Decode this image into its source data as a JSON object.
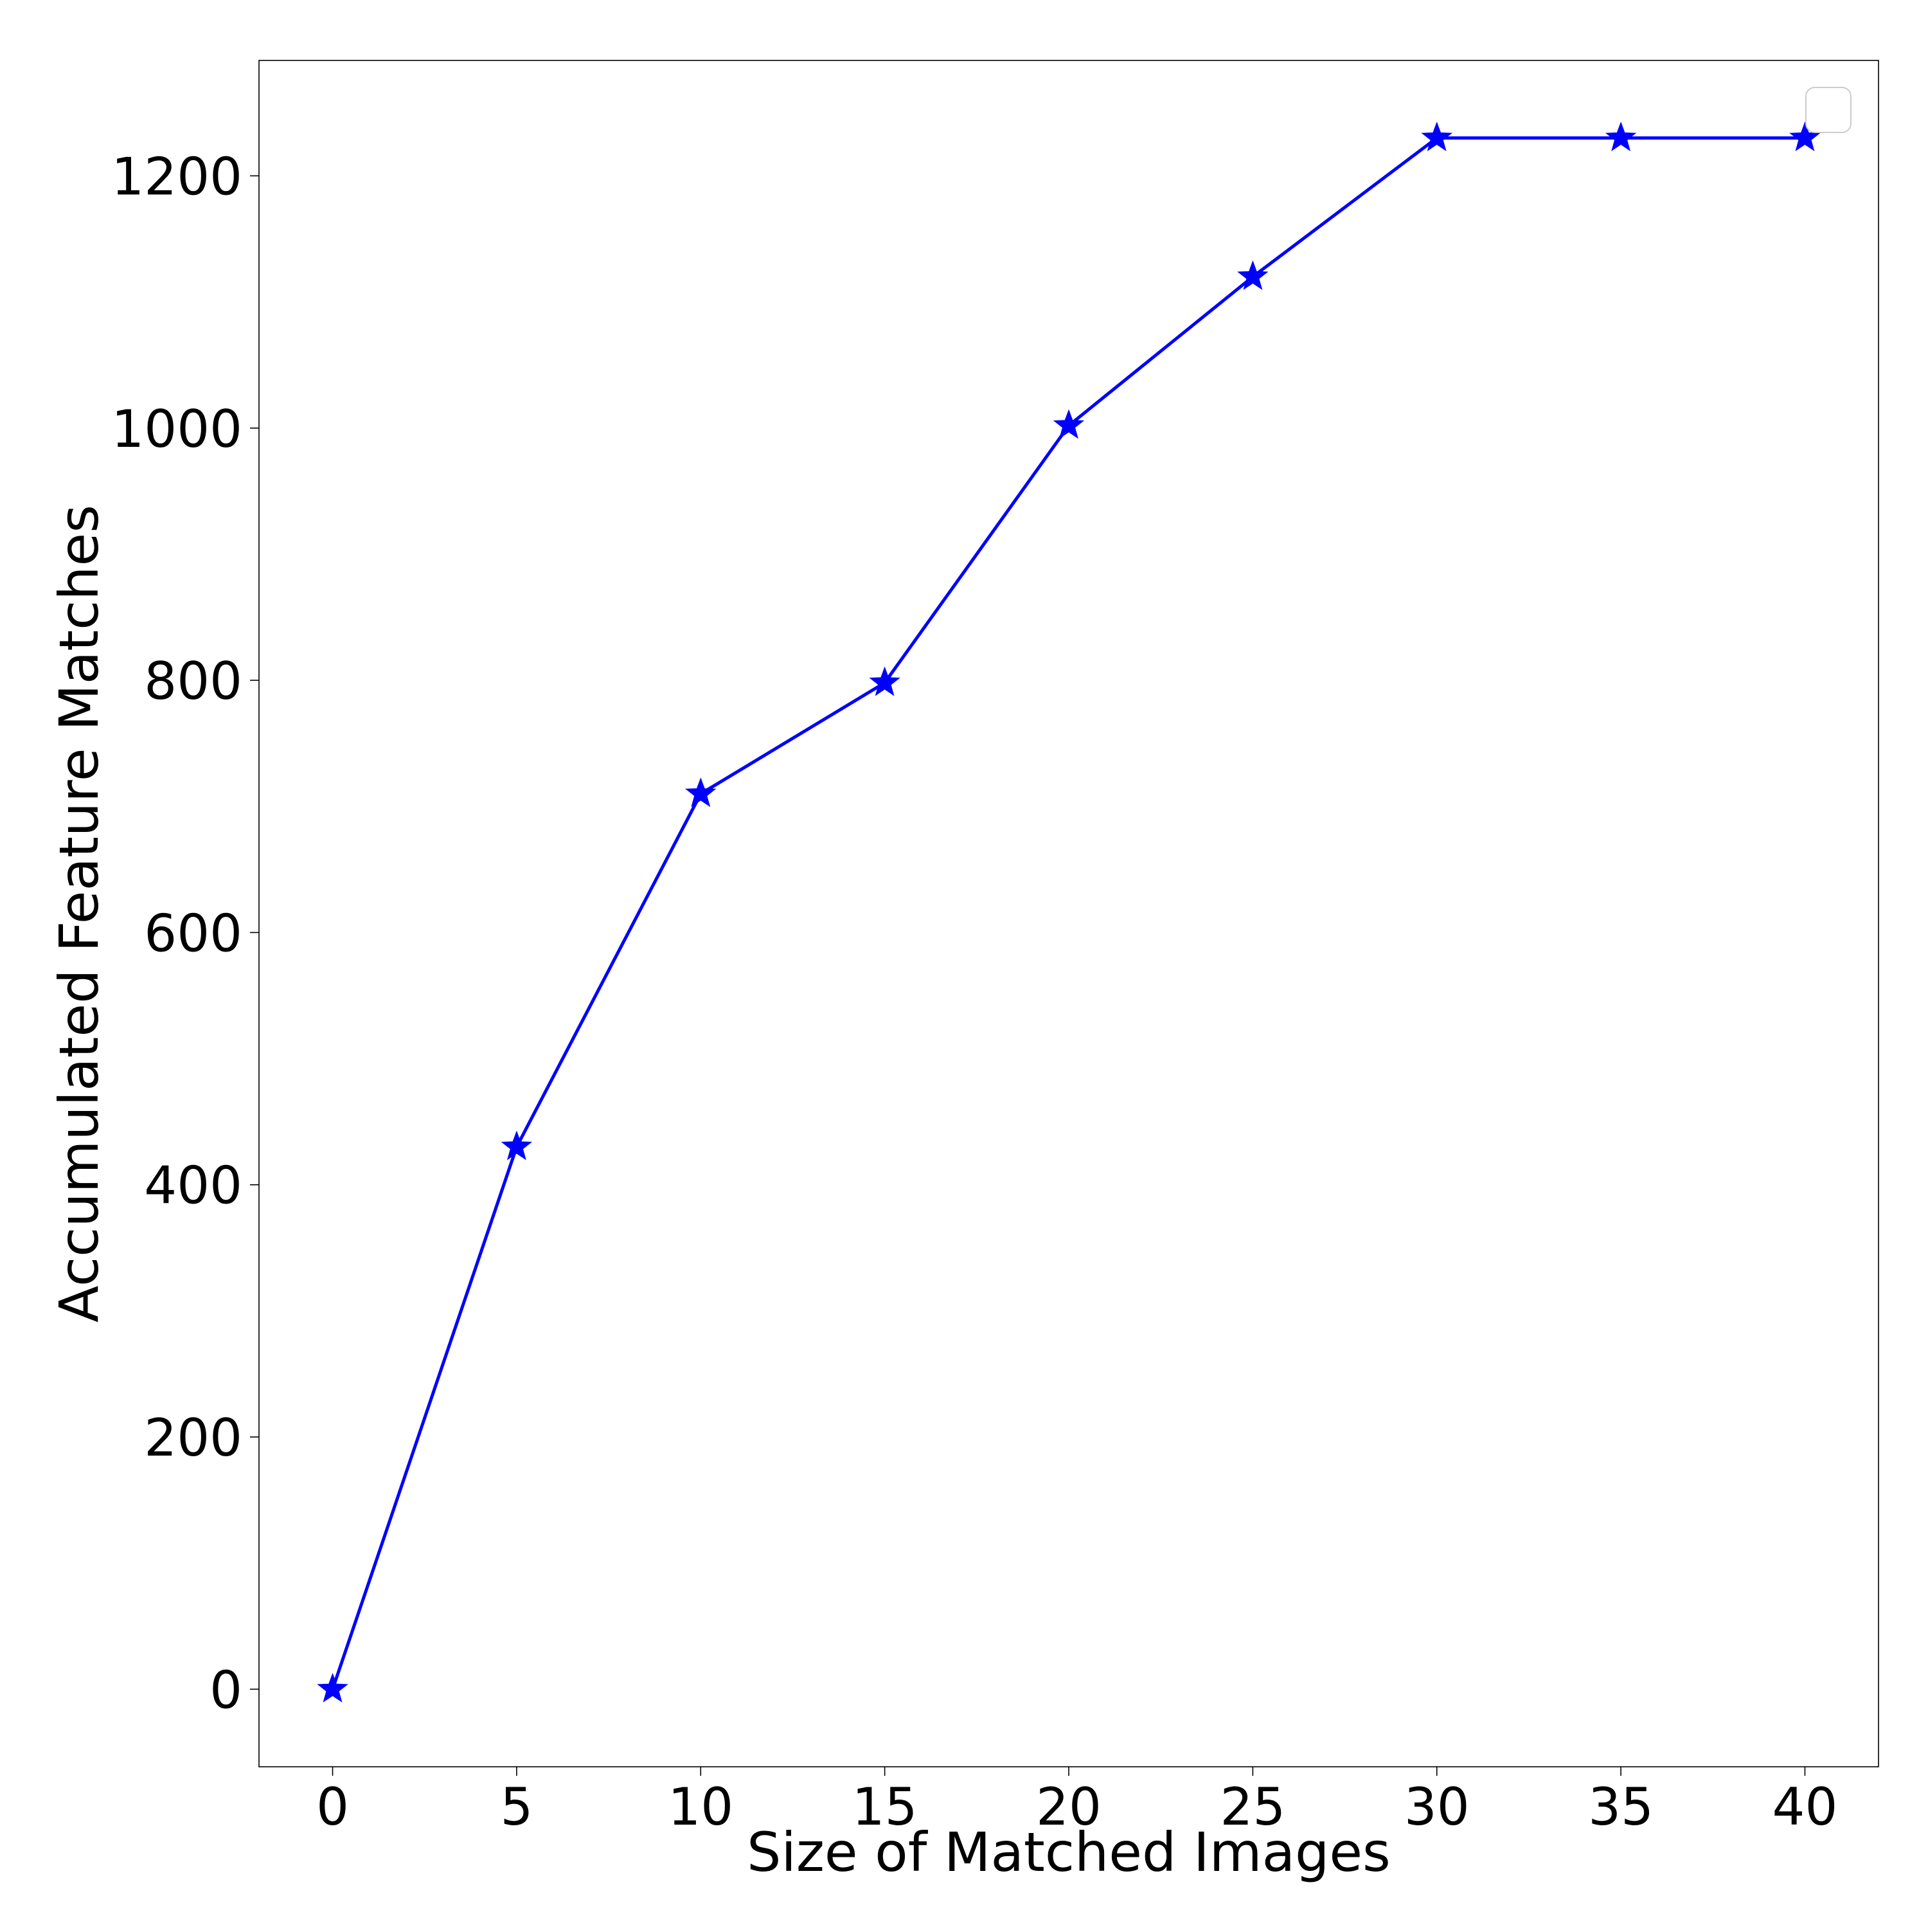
{
  "chart_data": {
    "type": "line",
    "title": "",
    "xlabel": "Size of Matched Images",
    "ylabel": "Accumulated Feature Matches",
    "x": [
      0,
      5,
      10,
      15,
      20,
      25,
      30,
      35,
      40
    ],
    "series": [
      {
        "values": [
          0,
          430,
          710,
          798,
          1002,
          1120,
          1230,
          1230,
          1230
        ],
        "color": "#0000ff",
        "marker": "star"
      }
    ],
    "xticks": [
      0,
      5,
      10,
      15,
      20,
      25,
      30,
      35,
      40
    ],
    "xtick_labels": [
      "0",
      "5",
      "10",
      "15",
      "20",
      "25",
      "30",
      "35",
      "40"
    ],
    "yticks": [
      0,
      200,
      400,
      600,
      800,
      1000,
      1200
    ],
    "ytick_labels": [
      "0",
      "200",
      "400",
      "600",
      "800",
      "1000",
      "1200"
    ],
    "xlim": [
      -2,
      42
    ],
    "ylim": [
      -61.5,
      1291.5
    ],
    "grid": false,
    "legend": {
      "placement": "top-right",
      "entries": []
    }
  }
}
